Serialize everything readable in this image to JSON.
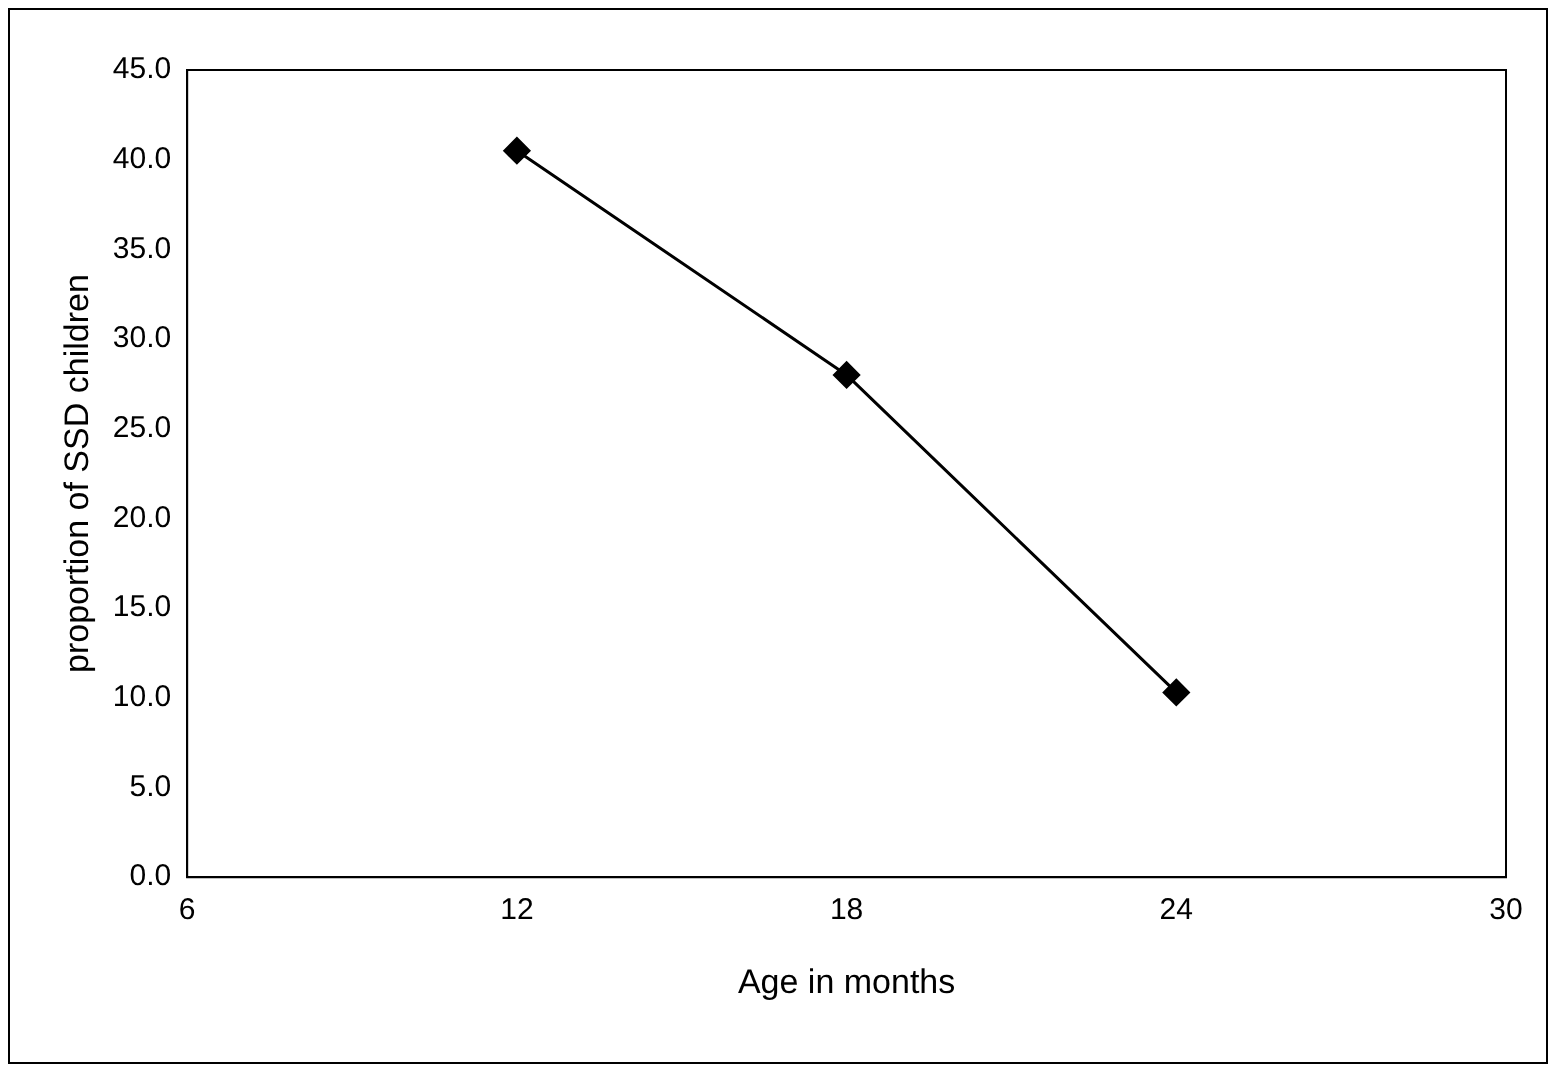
{
  "chart_data": {
    "type": "line",
    "xlabel": "Age in months",
    "ylabel": "proportion of SSD children",
    "x": [
      12,
      18,
      24
    ],
    "series": [
      {
        "color": "#000000",
        "values": [
          40.5,
          28,
          10.3
        ]
      }
    ],
    "xlim": [
      6,
      30
    ],
    "xticks": [
      6,
      12,
      18,
      24,
      30
    ],
    "ylim": [
      0,
      45
    ],
    "yticks": [
      {
        "value": 0,
        "label": "0.0"
      },
      {
        "value": 5,
        "label": "5.0"
      },
      {
        "value": 10,
        "label": "10.0"
      },
      {
        "value": 15,
        "label": "15.0"
      },
      {
        "value": 20,
        "label": "20.0"
      },
      {
        "value": 25,
        "label": "25.0"
      },
      {
        "value": 30,
        "label": "30.0"
      },
      {
        "value": 35,
        "label": "35.0"
      },
      {
        "value": 40,
        "label": "40.0"
      },
      {
        "value": 45,
        "label": "45.0"
      }
    ],
    "marker": "diamond",
    "line_style": "solid",
    "grid": false,
    "legend": false
  }
}
